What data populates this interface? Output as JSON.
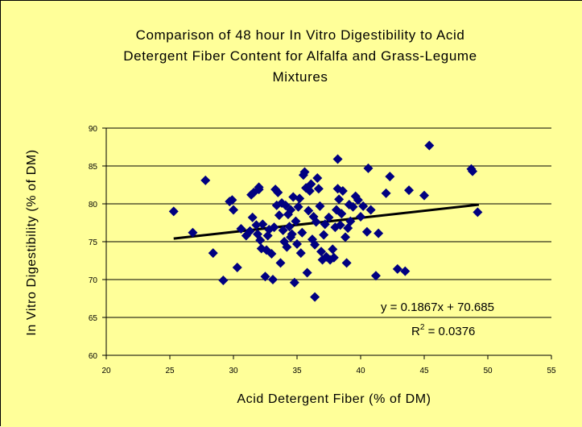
{
  "chart_data": {
    "type": "scatter",
    "title_lines": [
      "Comparison of 48 hour In Vitro Digestibility to Acid",
      "Detergent Fiber Content for Alfalfa and Grass-Legume",
      "Mixtures"
    ],
    "xlabel": "Acid Detergent Fiber (% of DM)",
    "ylabel": "In Vitro Digestibility (% of DM)",
    "xlim": [
      20,
      55
    ],
    "ylim": [
      60,
      90
    ],
    "xticks": [
      "20",
      "25",
      "30",
      "35",
      "40",
      "45",
      "50",
      "55"
    ],
    "yticks": [
      "60",
      "65",
      "70",
      "75",
      "80",
      "85",
      "90"
    ],
    "grid": "horizontal",
    "colors": {
      "background": "#ffff99",
      "marker": "#000080",
      "trendline": "#000000",
      "grid": "#000000"
    },
    "marker": "diamond",
    "trendline": {
      "slope": 0.1867,
      "intercept": 70.685,
      "x_range": [
        25.3,
        49.3
      ]
    },
    "equation_text": "y = 0.1867x + 70.685",
    "r2_prefix": "R",
    "r2_sup": "2",
    "r2_value": " = 0.0376",
    "points": [
      [
        25.3,
        79.0
      ],
      [
        26.8,
        76.2
      ],
      [
        27.8,
        83.1
      ],
      [
        28.4,
        73.5
      ],
      [
        29.2,
        69.9
      ],
      [
        29.7,
        80.3
      ],
      [
        29.9,
        80.5
      ],
      [
        30.0,
        79.2
      ],
      [
        30.3,
        71.6
      ],
      [
        30.6,
        76.7
      ],
      [
        31.0,
        75.8
      ],
      [
        31.3,
        76.4
      ],
      [
        31.4,
        81.2
      ],
      [
        31.5,
        78.2
      ],
      [
        31.6,
        81.5
      ],
      [
        31.8,
        77.2
      ],
      [
        31.9,
        76.0
      ],
      [
        32.0,
        82.2
      ],
      [
        32.0,
        81.9
      ],
      [
        32.1,
        75.2
      ],
      [
        32.2,
        74.1
      ],
      [
        32.3,
        77.3
      ],
      [
        32.5,
        70.4
      ],
      [
        32.6,
        73.9
      ],
      [
        32.7,
        75.8
      ],
      [
        32.8,
        76.6
      ],
      [
        33.0,
        73.4
      ],
      [
        33.1,
        70.0
      ],
      [
        33.2,
        76.9
      ],
      [
        33.3,
        81.9
      ],
      [
        33.4,
        79.8
      ],
      [
        33.5,
        81.5
      ],
      [
        33.6,
        78.5
      ],
      [
        33.7,
        72.2
      ],
      [
        33.8,
        80.1
      ],
      [
        33.9,
        76.5
      ],
      [
        34.0,
        75.0
      ],
      [
        34.1,
        79.8
      ],
      [
        34.2,
        74.3
      ],
      [
        34.3,
        78.6
      ],
      [
        34.4,
        77.0
      ],
      [
        34.5,
        75.6
      ],
      [
        34.5,
        79.2
      ],
      [
        34.6,
        76.0
      ],
      [
        34.7,
        80.9
      ],
      [
        34.8,
        69.6
      ],
      [
        34.9,
        77.7
      ],
      [
        35.0,
        74.7
      ],
      [
        35.1,
        79.6
      ],
      [
        35.2,
        80.7
      ],
      [
        35.3,
        73.5
      ],
      [
        35.4,
        76.2
      ],
      [
        35.5,
        83.8
      ],
      [
        35.6,
        84.2
      ],
      [
        35.7,
        82.1
      ],
      [
        35.8,
        70.9
      ],
      [
        35.9,
        79.1
      ],
      [
        36.0,
        81.7
      ],
      [
        36.1,
        82.6
      ],
      [
        36.2,
        75.3
      ],
      [
        36.3,
        78.3
      ],
      [
        36.4,
        67.7
      ],
      [
        36.4,
        74.6
      ],
      [
        36.5,
        77.6
      ],
      [
        36.6,
        83.4
      ],
      [
        36.7,
        82.0
      ],
      [
        36.8,
        79.7
      ],
      [
        36.9,
        73.7
      ],
      [
        37.0,
        72.6
      ],
      [
        37.1,
        75.9
      ],
      [
        37.2,
        77.3
      ],
      [
        37.3,
        73.0
      ],
      [
        37.5,
        78.2
      ],
      [
        37.6,
        72.6
      ],
      [
        37.8,
        74.0
      ],
      [
        37.9,
        72.9
      ],
      [
        38.0,
        76.9
      ],
      [
        38.1,
        79.2
      ],
      [
        38.2,
        82.0
      ],
      [
        38.2,
        85.9
      ],
      [
        38.3,
        80.6
      ],
      [
        38.4,
        77.2
      ],
      [
        38.5,
        78.7
      ],
      [
        38.6,
        81.7
      ],
      [
        38.8,
        75.6
      ],
      [
        38.9,
        72.2
      ],
      [
        39.0,
        76.8
      ],
      [
        39.1,
        79.9
      ],
      [
        39.2,
        77.7
      ],
      [
        39.4,
        79.6
      ],
      [
        39.6,
        81.0
      ],
      [
        39.8,
        80.5
      ],
      [
        40.0,
        78.3
      ],
      [
        40.2,
        79.7
      ],
      [
        40.5,
        76.3
      ],
      [
        40.6,
        84.7
      ],
      [
        40.8,
        79.2
      ],
      [
        41.2,
        70.5
      ],
      [
        41.4,
        76.1
      ],
      [
        42.0,
        81.4
      ],
      [
        42.3,
        83.6
      ],
      [
        42.9,
        71.4
      ],
      [
        43.5,
        71.1
      ],
      [
        43.8,
        81.8
      ],
      [
        45.0,
        81.1
      ],
      [
        45.4,
        87.7
      ],
      [
        48.7,
        84.6
      ],
      [
        48.8,
        84.3
      ],
      [
        49.2,
        78.9
      ]
    ]
  }
}
